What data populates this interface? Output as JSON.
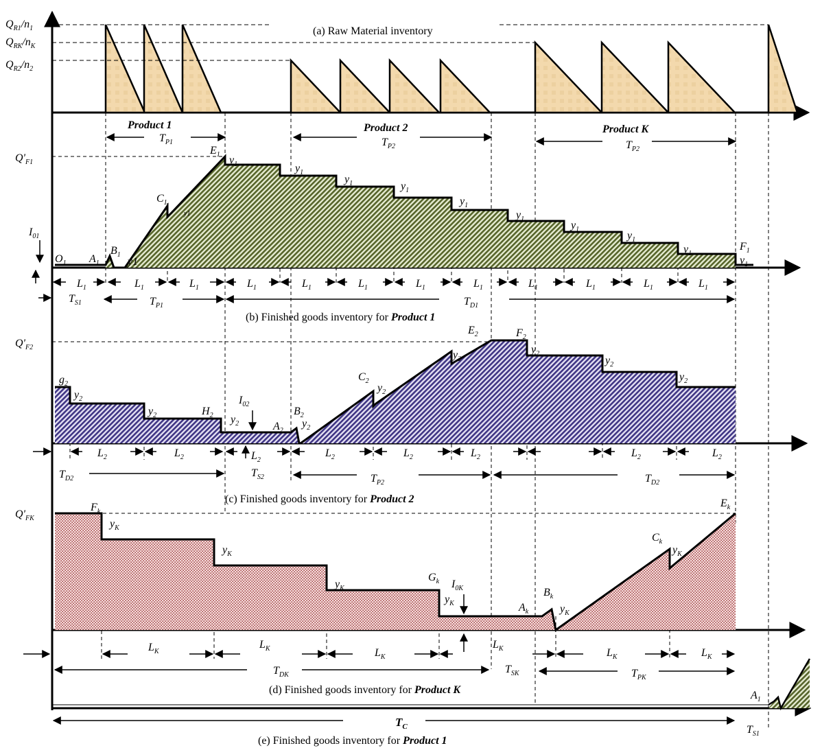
{
  "panels": {
    "a": {
      "caption": "(a)    Raw Material inventory",
      "levels": [
        {
          "main": "Q",
          "sub": "R1",
          "rest": "/n",
          "sub2": "1"
        },
        {
          "main": "Q",
          "sub": "RK",
          "rest": "/n",
          "sub2": "K"
        },
        {
          "main": "Q",
          "sub": "R2",
          "rest": "/n",
          "sub2": "2"
        }
      ],
      "product_titles": [
        "Product 1",
        "Product 2",
        "Product K"
      ],
      "durations": [
        {
          "main": "T",
          "sub": "P1"
        },
        {
          "main": "T",
          "sub": "P2"
        },
        {
          "main": "T",
          "sub": "P2"
        }
      ]
    },
    "b": {
      "caption_prefix": "(b) Finished goods inventory for ",
      "caption_product": "Product 1",
      "ymax": {
        "main": "Q'",
        "sub": "F1"
      },
      "init": {
        "main": "I",
        "sub": "01"
      },
      "points": {
        "O": {
          "main": "O",
          "sub": "1"
        },
        "A": {
          "main": "A",
          "sub": "1"
        },
        "B": {
          "main": "B",
          "sub": "1"
        },
        "C": {
          "main": "C",
          "sub": "1"
        },
        "E": {
          "main": "E",
          "sub": "1"
        },
        "F": {
          "main": "F",
          "sub": "1"
        }
      },
      "demand": "y1",
      "demand_sym": {
        "main": "y",
        "sub": "1"
      },
      "interval": {
        "main": "L",
        "sub": "1"
      },
      "durations": [
        {
          "main": "T",
          "sub": "S1"
        },
        {
          "main": "T",
          "sub": "P1"
        },
        {
          "main": "T",
          "sub": "D1"
        }
      ]
    },
    "c": {
      "caption_prefix": "(c) Finished goods inventory for ",
      "caption_product": "Product 2",
      "ymax": {
        "main": "Q'",
        "sub": "F2"
      },
      "init": {
        "main": "I",
        "sub": "02"
      },
      "points": {
        "g": {
          "main": "g",
          "sub": "2"
        },
        "H": {
          "main": "H",
          "sub": "2"
        },
        "A": {
          "main": "A",
          "sub": "2"
        },
        "B": {
          "main": "B",
          "sub": "2"
        },
        "C": {
          "main": "C",
          "sub": "2"
        },
        "E": {
          "main": "E",
          "sub": "2"
        },
        "F": {
          "main": "F",
          "sub": "2"
        }
      },
      "demand": {
        "main": "y",
        "sub": "2"
      },
      "interval": {
        "main": "L",
        "sub": "2"
      },
      "durations": [
        {
          "main": "T",
          "sub": "D2"
        },
        {
          "main": "T",
          "sub": "S2"
        },
        {
          "main": "T",
          "sub": "P2"
        },
        {
          "main": "T",
          "sub": "D2"
        }
      ]
    },
    "d": {
      "caption_prefix": "(d) Finished goods inventory for ",
      "caption_product": "Product K",
      "ymax": {
        "main": "Q'",
        "sub": "FK"
      },
      "init": {
        "main": "I",
        "sub": "0K"
      },
      "points": {
        "F": {
          "main": "F",
          "sub": "k"
        },
        "G": {
          "main": "G",
          "sub": "k"
        },
        "A": {
          "main": "A",
          "sub": "k"
        },
        "B": {
          "main": "B",
          "sub": "k"
        },
        "C": {
          "main": "C",
          "sub": "k"
        },
        "E": {
          "main": "E",
          "sub": "k"
        }
      },
      "demand": {
        "main": "y",
        "sub": "K"
      },
      "interval": {
        "main": "L",
        "sub": "K"
      },
      "durations": [
        {
          "main": "T",
          "sub": "DK"
        },
        {
          "main": "T",
          "sub": "SK"
        },
        {
          "main": "T",
          "sub": "PK"
        }
      ]
    },
    "e": {
      "caption_prefix": "(e) Finished goods inventory for ",
      "caption_product": "Product 1",
      "cycle": {
        "main": "T",
        "sub": "C"
      },
      "point": {
        "main": "A",
        "sub": "1"
      },
      "setup": {
        "main": "T",
        "sub": "S1"
      }
    }
  },
  "colors": {
    "raw_fill": "#f3d9ad",
    "p1_fill": "#5f6b2e",
    "p2_fill": "#4a3e8a",
    "pk_fill": "#a04040",
    "line": "#000000"
  }
}
